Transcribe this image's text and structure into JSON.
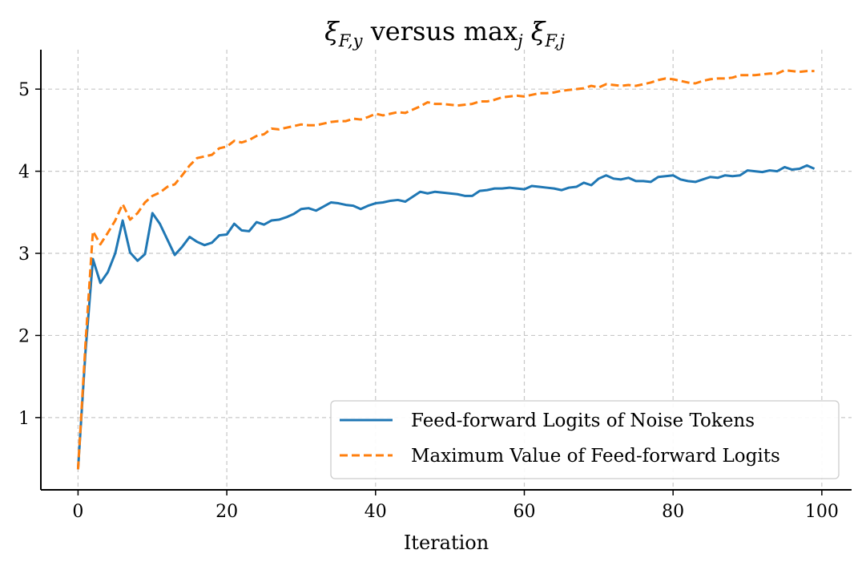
{
  "chart_data": {
    "type": "line",
    "title": "ξ_{F,y} versus max_j ξ_{F,j}",
    "title_parts": {
      "xi1": "ξ",
      "sub1": "F,y",
      "versus": " versus max",
      "sub_max": "j",
      "xi2": " ξ",
      "sub2": "F,j"
    },
    "xlabel": "Iteration",
    "ylabel": "",
    "xlim": [
      -5,
      104
    ],
    "ylim": [
      0.12,
      5.48
    ],
    "xticks": [
      0,
      20,
      40,
      60,
      80,
      100
    ],
    "yticks": [
      1,
      2,
      3,
      4,
      5
    ],
    "grid": true,
    "legend_position": "lower-right",
    "series": [
      {
        "name": "Feed-forward Logits of Noise Tokens",
        "color": "#1f77b4",
        "style": "solid",
        "x": [
          0,
          1,
          2,
          3,
          4,
          5,
          6,
          7,
          8,
          9,
          10,
          11,
          12,
          13,
          14,
          15,
          16,
          17,
          18,
          19,
          20,
          21,
          22,
          23,
          24,
          25,
          26,
          27,
          28,
          29,
          30,
          31,
          32,
          33,
          34,
          35,
          36,
          37,
          38,
          39,
          40,
          41,
          42,
          43,
          44,
          45,
          46,
          47,
          48,
          49,
          50,
          51,
          52,
          53,
          54,
          55,
          56,
          57,
          58,
          59,
          60,
          61,
          62,
          63,
          64,
          65,
          66,
          67,
          68,
          69,
          70,
          71,
          72,
          73,
          74,
          75,
          76,
          77,
          78,
          79,
          80,
          81,
          82,
          83,
          84,
          85,
          86,
          87,
          88,
          89,
          90,
          91,
          92,
          93,
          94,
          95,
          96,
          97,
          98,
          99
        ],
        "values": [
          0.37,
          1.8,
          2.93,
          2.64,
          2.77,
          3.0,
          3.4,
          3.01,
          2.91,
          2.99,
          3.49,
          3.36,
          3.17,
          2.98,
          3.08,
          3.2,
          3.14,
          3.1,
          3.13,
          3.22,
          3.23,
          3.36,
          3.28,
          3.27,
          3.38,
          3.35,
          3.4,
          3.41,
          3.44,
          3.48,
          3.54,
          3.55,
          3.52,
          3.57,
          3.62,
          3.61,
          3.59,
          3.58,
          3.54,
          3.58,
          3.61,
          3.62,
          3.64,
          3.65,
          3.63,
          3.69,
          3.75,
          3.73,
          3.75,
          3.74,
          3.73,
          3.72,
          3.7,
          3.7,
          3.76,
          3.77,
          3.79,
          3.79,
          3.8,
          3.79,
          3.78,
          3.82,
          3.81,
          3.8,
          3.79,
          3.77,
          3.8,
          3.81,
          3.86,
          3.83,
          3.91,
          3.95,
          3.91,
          3.9,
          3.92,
          3.88,
          3.88,
          3.87,
          3.93,
          3.94,
          3.95,
          3.9,
          3.88,
          3.87,
          3.9,
          3.93,
          3.92,
          3.95,
          3.94,
          3.95,
          4.01,
          4.0,
          3.99,
          4.01,
          4.0,
          4.05,
          4.02,
          4.03,
          4.07,
          4.03
        ]
      },
      {
        "name": "Maximum Value of Feed-forward Logits",
        "color": "#ff7f0e",
        "style": "dashed",
        "x": [
          0,
          1,
          2,
          3,
          4,
          5,
          6,
          7,
          8,
          9,
          10,
          11,
          12,
          13,
          14,
          15,
          16,
          17,
          18,
          19,
          20,
          21,
          22,
          23,
          24,
          25,
          26,
          27,
          28,
          29,
          30,
          31,
          32,
          33,
          34,
          35,
          36,
          37,
          38,
          39,
          40,
          41,
          42,
          43,
          44,
          45,
          46,
          47,
          48,
          49,
          50,
          51,
          52,
          53,
          54,
          55,
          56,
          57,
          58,
          59,
          60,
          61,
          62,
          63,
          64,
          65,
          66,
          67,
          68,
          69,
          70,
          71,
          72,
          73,
          74,
          75,
          76,
          77,
          78,
          79,
          80,
          81,
          82,
          83,
          84,
          85,
          86,
          87,
          88,
          89,
          90,
          91,
          92,
          93,
          94,
          95,
          96,
          97,
          98,
          99
        ],
        "values": [
          0.37,
          1.9,
          3.27,
          3.11,
          3.25,
          3.4,
          3.6,
          3.41,
          3.49,
          3.62,
          3.7,
          3.74,
          3.81,
          3.84,
          3.95,
          4.07,
          4.16,
          4.18,
          4.2,
          4.28,
          4.3,
          4.37,
          4.35,
          4.38,
          4.43,
          4.45,
          4.52,
          4.51,
          4.53,
          4.55,
          4.57,
          4.56,
          4.56,
          4.58,
          4.6,
          4.61,
          4.61,
          4.64,
          4.63,
          4.66,
          4.7,
          4.68,
          4.7,
          4.72,
          4.71,
          4.75,
          4.79,
          4.84,
          4.82,
          4.82,
          4.81,
          4.8,
          4.81,
          4.82,
          4.85,
          4.85,
          4.87,
          4.9,
          4.91,
          4.92,
          4.91,
          4.93,
          4.95,
          4.95,
          4.96,
          4.98,
          4.99,
          5.0,
          5.01,
          5.04,
          5.02,
          5.06,
          5.05,
          5.04,
          5.05,
          5.04,
          5.06,
          5.08,
          5.11,
          5.13,
          5.12,
          5.1,
          5.08,
          5.07,
          5.1,
          5.12,
          5.13,
          5.13,
          5.14,
          5.17,
          5.17,
          5.17,
          5.18,
          5.19,
          5.19,
          5.23,
          5.22,
          5.21,
          5.22,
          5.22
        ]
      }
    ]
  }
}
